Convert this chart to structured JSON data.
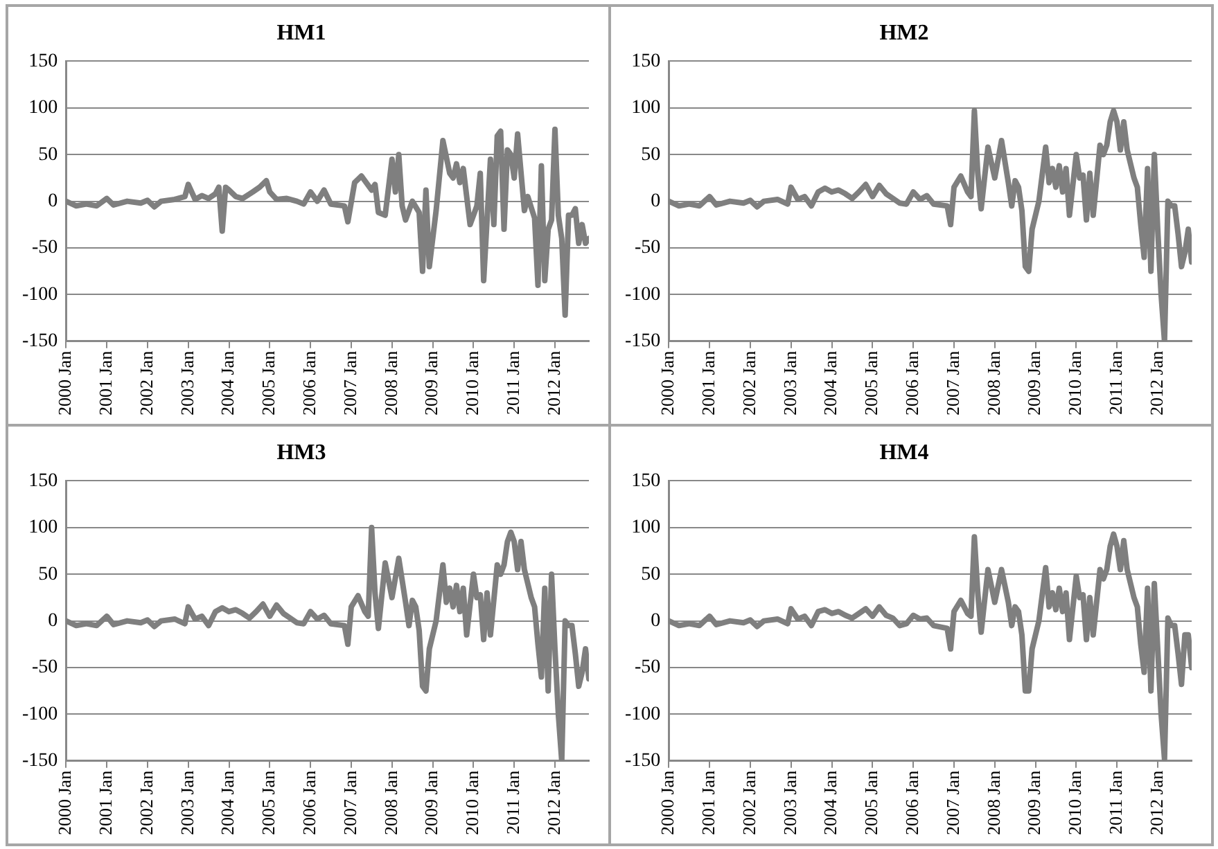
{
  "chart_data": [
    {
      "type": "line",
      "title": "HM1",
      "grid": "y",
      "ylim": [
        -150,
        150
      ],
      "yticks": [
        -150,
        -100,
        -50,
        0,
        50,
        100,
        150
      ],
      "xlim": [
        "2000-01",
        "2012-11"
      ],
      "xticks": [
        {
          "value": "2000-01",
          "label": "2000 Jan"
        },
        {
          "value": "2001-01",
          "label": "2001 Jan"
        },
        {
          "value": "2002-01",
          "label": "2002 Jan"
        },
        {
          "value": "2003-01",
          "label": "2003 Jan"
        },
        {
          "value": "2004-01",
          "label": "2004 Jan"
        },
        {
          "value": "2005-01",
          "label": "2005 Jan"
        },
        {
          "value": "2006-01",
          "label": "2006 Jan"
        },
        {
          "value": "2007-01",
          "label": "2007 Jan"
        },
        {
          "value": "2008-01",
          "label": "2008 Jan"
        },
        {
          "value": "2009-01",
          "label": "2009 Jan"
        },
        {
          "value": "2010-01",
          "label": "2010 Jan"
        },
        {
          "value": "2011-01",
          "label": "2011 Jan"
        },
        {
          "value": "2012-01",
          "label": "2012 Jan"
        }
      ],
      "x": [
        "2000-01",
        "2000-04",
        "2000-07",
        "2000-10",
        "2001-01",
        "2001-03",
        "2001-07",
        "2001-11",
        "2002-01",
        "2002-03",
        "2002-05",
        "2002-09",
        "2002-12",
        "2003-01",
        "2003-03",
        "2003-05",
        "2003-07",
        "2003-09",
        "2003-10",
        "2003-11",
        "2003-12",
        "2004-01",
        "2004-03",
        "2004-05",
        "2004-08",
        "2004-10",
        "2004-12",
        "2005-01",
        "2005-03",
        "2005-06",
        "2005-09",
        "2005-11",
        "2006-01",
        "2006-03",
        "2006-05",
        "2006-07",
        "2006-11",
        "2006-12",
        "2007-02",
        "2007-04",
        "2007-07",
        "2007-08",
        "2007-09",
        "2007-11",
        "2008-01",
        "2008-02",
        "2008-03",
        "2008-04",
        "2008-05",
        "2008-07",
        "2008-09",
        "2008-10",
        "2008-11",
        "2008-12",
        "2009-02",
        "2009-04",
        "2009-06",
        "2009-07",
        "2009-08",
        "2009-09",
        "2009-10",
        "2009-12",
        "2010-02",
        "2010-03",
        "2010-04",
        "2010-06",
        "2010-07",
        "2010-08",
        "2010-09",
        "2010-10",
        "2010-11",
        "2010-12",
        "2011-01",
        "2011-02",
        "2011-04",
        "2011-05",
        "2011-07",
        "2011-08",
        "2011-09",
        "2011-10",
        "2011-11",
        "2011-12",
        "2012-01",
        "2012-02",
        "2012-03",
        "2012-04",
        "2012-05",
        "2012-06",
        "2012-07",
        "2012-08",
        "2012-09",
        "2012-10",
        "2012-11"
      ],
      "series": [
        {
          "color": "#7f7f7f",
          "values": [
            0,
            -5,
            -3,
            -5,
            3,
            -4,
            0,
            -2,
            1,
            -6,
            0,
            2,
            5,
            18,
            2,
            6,
            3,
            8,
            15,
            -32,
            15,
            12,
            5,
            3,
            10,
            15,
            22,
            10,
            2,
            3,
            0,
            -3,
            10,
            0,
            12,
            -3,
            -5,
            -22,
            20,
            27,
            12,
            18,
            -12,
            -15,
            45,
            10,
            50,
            -5,
            -20,
            0,
            -12,
            -75,
            12,
            -70,
            -10,
            65,
            30,
            25,
            40,
            20,
            35,
            -25,
            -5,
            30,
            -85,
            45,
            -25,
            70,
            75,
            -30,
            55,
            50,
            25,
            72,
            -10,
            5,
            -18,
            -90,
            38,
            -85,
            -30,
            -20,
            77,
            -15,
            -40,
            -122,
            -15,
            -15,
            -8,
            -45,
            -25,
            -45,
            -40
          ]
        }
      ]
    },
    {
      "type": "line",
      "title": "HM2",
      "grid": "y",
      "ylim": [
        -150,
        150
      ],
      "yticks": [
        -150,
        -100,
        -50,
        0,
        50,
        100,
        150
      ],
      "xlim": [
        "2000-01",
        "2012-11"
      ],
      "xticks": [
        {
          "value": "2000-01",
          "label": "2000 Jan"
        },
        {
          "value": "2001-01",
          "label": "2001 Jan"
        },
        {
          "value": "2002-01",
          "label": "2002 Jan"
        },
        {
          "value": "2003-01",
          "label": "2003 Jan"
        },
        {
          "value": "2004-01",
          "label": "2004 Jan"
        },
        {
          "value": "2005-01",
          "label": "2005 Jan"
        },
        {
          "value": "2006-01",
          "label": "2006 Jan"
        },
        {
          "value": "2007-01",
          "label": "2007 Jan"
        },
        {
          "value": "2008-01",
          "label": "2008 Jan"
        },
        {
          "value": "2009-01",
          "label": "2009 Jan"
        },
        {
          "value": "2010-01",
          "label": "2010 Jan"
        },
        {
          "value": "2011-01",
          "label": "2011 Jan"
        },
        {
          "value": "2012-01",
          "label": "2012 Jan"
        }
      ],
      "x": [
        "2000-01",
        "2000-04",
        "2000-07",
        "2000-10",
        "2001-01",
        "2001-03",
        "2001-07",
        "2001-11",
        "2002-01",
        "2002-03",
        "2002-05",
        "2002-09",
        "2002-12",
        "2003-01",
        "2003-03",
        "2003-05",
        "2003-07",
        "2003-09",
        "2003-11",
        "2004-01",
        "2004-03",
        "2004-05",
        "2004-07",
        "2004-09",
        "2004-11",
        "2005-01",
        "2005-03",
        "2005-05",
        "2005-07",
        "2005-09",
        "2005-11",
        "2006-01",
        "2006-03",
        "2006-05",
        "2006-07",
        "2006-11",
        "2006-12",
        "2007-01",
        "2007-03",
        "2007-05",
        "2007-06",
        "2007-07",
        "2007-08",
        "2007-09",
        "2007-11",
        "2008-01",
        "2008-03",
        "2008-05",
        "2008-06",
        "2008-07",
        "2008-08",
        "2008-09",
        "2008-10",
        "2008-11",
        "2008-12",
        "2009-02",
        "2009-04",
        "2009-05",
        "2009-06",
        "2009-07",
        "2009-08",
        "2009-09",
        "2009-10",
        "2009-11",
        "2010-01",
        "2010-02",
        "2010-03",
        "2010-04",
        "2010-05",
        "2010-06",
        "2010-08",
        "2010-09",
        "2010-10",
        "2010-11",
        "2010-12",
        "2011-01",
        "2011-02",
        "2011-03",
        "2011-04",
        "2011-06",
        "2011-07",
        "2011-08",
        "2011-09",
        "2011-10",
        "2011-11",
        "2011-12",
        "2012-01",
        "2012-02",
        "2012-03",
        "2012-04",
        "2012-05",
        "2012-06",
        "2012-07",
        "2012-08",
        "2012-09",
        "2012-10",
        "2012-11"
      ],
      "series": [
        {
          "color": "#7f7f7f",
          "values": [
            0,
            -5,
            -3,
            -5,
            5,
            -4,
            0,
            -2,
            1,
            -6,
            0,
            2,
            -3,
            15,
            2,
            5,
            -5,
            10,
            14,
            10,
            12,
            8,
            3,
            10,
            18,
            5,
            17,
            8,
            3,
            -2,
            -3,
            10,
            2,
            6,
            -3,
            -5,
            -25,
            15,
            27,
            10,
            5,
            97,
            30,
            -8,
            58,
            25,
            65,
            20,
            -5,
            22,
            15,
            -10,
            -70,
            -75,
            -30,
            0,
            58,
            20,
            35,
            15,
            38,
            10,
            35,
            -15,
            50,
            25,
            28,
            -20,
            30,
            -15,
            60,
            50,
            60,
            85,
            97,
            85,
            55,
            85,
            55,
            25,
            15,
            -25,
            -60,
            35,
            -75,
            50,
            -30,
            -100,
            -150,
            0,
            -5,
            -5,
            -35,
            -70,
            -55,
            -30,
            -65
          ]
        }
      ]
    },
    {
      "type": "line",
      "title": "HM3",
      "grid": "y",
      "ylim": [
        -150,
        150
      ],
      "yticks": [
        -150,
        -100,
        -50,
        0,
        50,
        100,
        150
      ],
      "xlim": [
        "2000-01",
        "2012-11"
      ],
      "xticks": [
        {
          "value": "2000-01",
          "label": "2000 Jan"
        },
        {
          "value": "2001-01",
          "label": "2001 Jan"
        },
        {
          "value": "2002-01",
          "label": "2002 Jan"
        },
        {
          "value": "2003-01",
          "label": "2003 Jan"
        },
        {
          "value": "2004-01",
          "label": "2004 Jan"
        },
        {
          "value": "2005-01",
          "label": "2005 Jan"
        },
        {
          "value": "2006-01",
          "label": "2006 Jan"
        },
        {
          "value": "2007-01",
          "label": "2007 Jan"
        },
        {
          "value": "2008-01",
          "label": "2008 Jan"
        },
        {
          "value": "2009-01",
          "label": "2009 Jan"
        },
        {
          "value": "2010-01",
          "label": "2010 Jan"
        },
        {
          "value": "2011-01",
          "label": "2011 Jan"
        },
        {
          "value": "2012-01",
          "label": "2012 Jan"
        }
      ],
      "x": [
        "2000-01",
        "2000-04",
        "2000-07",
        "2000-10",
        "2001-01",
        "2001-03",
        "2001-07",
        "2001-11",
        "2002-01",
        "2002-03",
        "2002-05",
        "2002-09",
        "2002-12",
        "2003-01",
        "2003-03",
        "2003-05",
        "2003-07",
        "2003-09",
        "2003-11",
        "2004-01",
        "2004-03",
        "2004-05",
        "2004-07",
        "2004-09",
        "2004-11",
        "2005-01",
        "2005-03",
        "2005-05",
        "2005-07",
        "2005-09",
        "2005-11",
        "2006-01",
        "2006-03",
        "2006-05",
        "2006-07",
        "2006-11",
        "2006-12",
        "2007-01",
        "2007-03",
        "2007-05",
        "2007-06",
        "2007-07",
        "2007-08",
        "2007-09",
        "2007-11",
        "2008-01",
        "2008-03",
        "2008-05",
        "2008-06",
        "2008-07",
        "2008-08",
        "2008-09",
        "2008-10",
        "2008-11",
        "2008-12",
        "2009-02",
        "2009-04",
        "2009-05",
        "2009-06",
        "2009-07",
        "2009-08",
        "2009-09",
        "2009-10",
        "2009-11",
        "2010-01",
        "2010-02",
        "2010-03",
        "2010-04",
        "2010-05",
        "2010-06",
        "2010-08",
        "2010-09",
        "2010-10",
        "2010-11",
        "2010-12",
        "2011-01",
        "2011-02",
        "2011-03",
        "2011-04",
        "2011-06",
        "2011-07",
        "2011-08",
        "2011-09",
        "2011-10",
        "2011-11",
        "2011-12",
        "2012-01",
        "2012-02",
        "2012-03",
        "2012-04",
        "2012-05",
        "2012-06",
        "2012-07",
        "2012-08",
        "2012-09",
        "2012-10",
        "2012-11"
      ],
      "series": [
        {
          "color": "#7f7f7f",
          "values": [
            0,
            -5,
            -3,
            -5,
            5,
            -4,
            0,
            -2,
            1,
            -6,
            0,
            2,
            -3,
            15,
            2,
            5,
            -5,
            10,
            14,
            10,
            12,
            8,
            3,
            10,
            18,
            5,
            17,
            8,
            3,
            -2,
            -3,
            10,
            2,
            6,
            -3,
            -5,
            -25,
            15,
            27,
            10,
            5,
            100,
            30,
            -8,
            62,
            25,
            67,
            20,
            -5,
            22,
            15,
            -10,
            -70,
            -75,
            -30,
            0,
            60,
            20,
            35,
            15,
            38,
            10,
            35,
            -15,
            50,
            25,
            28,
            -20,
            30,
            -15,
            60,
            50,
            60,
            85,
            95,
            85,
            55,
            85,
            55,
            25,
            15,
            -25,
            -60,
            35,
            -75,
            50,
            -30,
            -100,
            -150,
            0,
            -5,
            -5,
            -35,
            -70,
            -55,
            -30,
            -62
          ]
        }
      ]
    },
    {
      "type": "line",
      "title": "HM4",
      "grid": "y",
      "ylim": [
        -150,
        150
      ],
      "yticks": [
        -150,
        -100,
        -50,
        0,
        50,
        100,
        150
      ],
      "xlim": [
        "2000-01",
        "2012-11"
      ],
      "xticks": [
        {
          "value": "2000-01",
          "label": "2000 Jan"
        },
        {
          "value": "2001-01",
          "label": "2001 Jan"
        },
        {
          "value": "2002-01",
          "label": "2002 Jan"
        },
        {
          "value": "2003-01",
          "label": "2003 Jan"
        },
        {
          "value": "2004-01",
          "label": "2004 Jan"
        },
        {
          "value": "2005-01",
          "label": "2005 Jan"
        },
        {
          "value": "2006-01",
          "label": "2006 Jan"
        },
        {
          "value": "2007-01",
          "label": "2007 Jan"
        },
        {
          "value": "2008-01",
          "label": "2008 Jan"
        },
        {
          "value": "2009-01",
          "label": "2009 Jan"
        },
        {
          "value": "2010-01",
          "label": "2010 Jan"
        },
        {
          "value": "2011-01",
          "label": "2011 Jan"
        },
        {
          "value": "2012-01",
          "label": "2012 Jan"
        }
      ],
      "x": [
        "2000-01",
        "2000-04",
        "2000-07",
        "2000-10",
        "2001-01",
        "2001-03",
        "2001-07",
        "2001-11",
        "2002-01",
        "2002-03",
        "2002-05",
        "2002-09",
        "2002-12",
        "2003-01",
        "2003-03",
        "2003-05",
        "2003-07",
        "2003-09",
        "2003-11",
        "2004-01",
        "2004-03",
        "2004-05",
        "2004-07",
        "2004-09",
        "2004-11",
        "2005-01",
        "2005-03",
        "2005-05",
        "2005-07",
        "2005-09",
        "2005-11",
        "2006-01",
        "2006-03",
        "2006-05",
        "2006-07",
        "2006-11",
        "2006-12",
        "2007-01",
        "2007-03",
        "2007-05",
        "2007-06",
        "2007-07",
        "2007-08",
        "2007-09",
        "2007-11",
        "2008-01",
        "2008-03",
        "2008-05",
        "2008-06",
        "2008-07",
        "2008-08",
        "2008-09",
        "2008-10",
        "2008-11",
        "2008-12",
        "2009-02",
        "2009-04",
        "2009-05",
        "2009-06",
        "2009-07",
        "2009-08",
        "2009-09",
        "2009-10",
        "2009-11",
        "2010-01",
        "2010-02",
        "2010-03",
        "2010-04",
        "2010-05",
        "2010-06",
        "2010-08",
        "2010-09",
        "2010-10",
        "2010-11",
        "2010-12",
        "2011-01",
        "2011-02",
        "2011-03",
        "2011-04",
        "2011-06",
        "2011-07",
        "2011-08",
        "2011-09",
        "2011-10",
        "2011-11",
        "2011-12",
        "2012-01",
        "2012-02",
        "2012-03",
        "2012-04",
        "2012-05",
        "2012-06",
        "2012-07",
        "2012-08",
        "2012-09",
        "2012-10",
        "2012-11"
      ],
      "series": [
        {
          "color": "#7f7f7f",
          "values": [
            0,
            -5,
            -3,
            -5,
            5,
            -4,
            0,
            -2,
            1,
            -6,
            0,
            2,
            -3,
            13,
            2,
            5,
            -5,
            10,
            12,
            8,
            10,
            6,
            3,
            8,
            13,
            5,
            15,
            6,
            3,
            -5,
            -3,
            6,
            2,
            3,
            -5,
            -8,
            -30,
            10,
            22,
            8,
            5,
            90,
            30,
            -12,
            55,
            20,
            55,
            20,
            -5,
            15,
            10,
            -15,
            -75,
            -75,
            -30,
            0,
            57,
            15,
            30,
            12,
            35,
            10,
            30,
            -20,
            48,
            25,
            28,
            -20,
            25,
            -15,
            55,
            45,
            55,
            80,
            93,
            80,
            55,
            86,
            55,
            25,
            15,
            -25,
            -55,
            35,
            -75,
            40,
            -30,
            -100,
            -148,
            3,
            -5,
            -5,
            -35,
            -68,
            -15,
            -15,
            -50
          ]
        }
      ]
    }
  ]
}
